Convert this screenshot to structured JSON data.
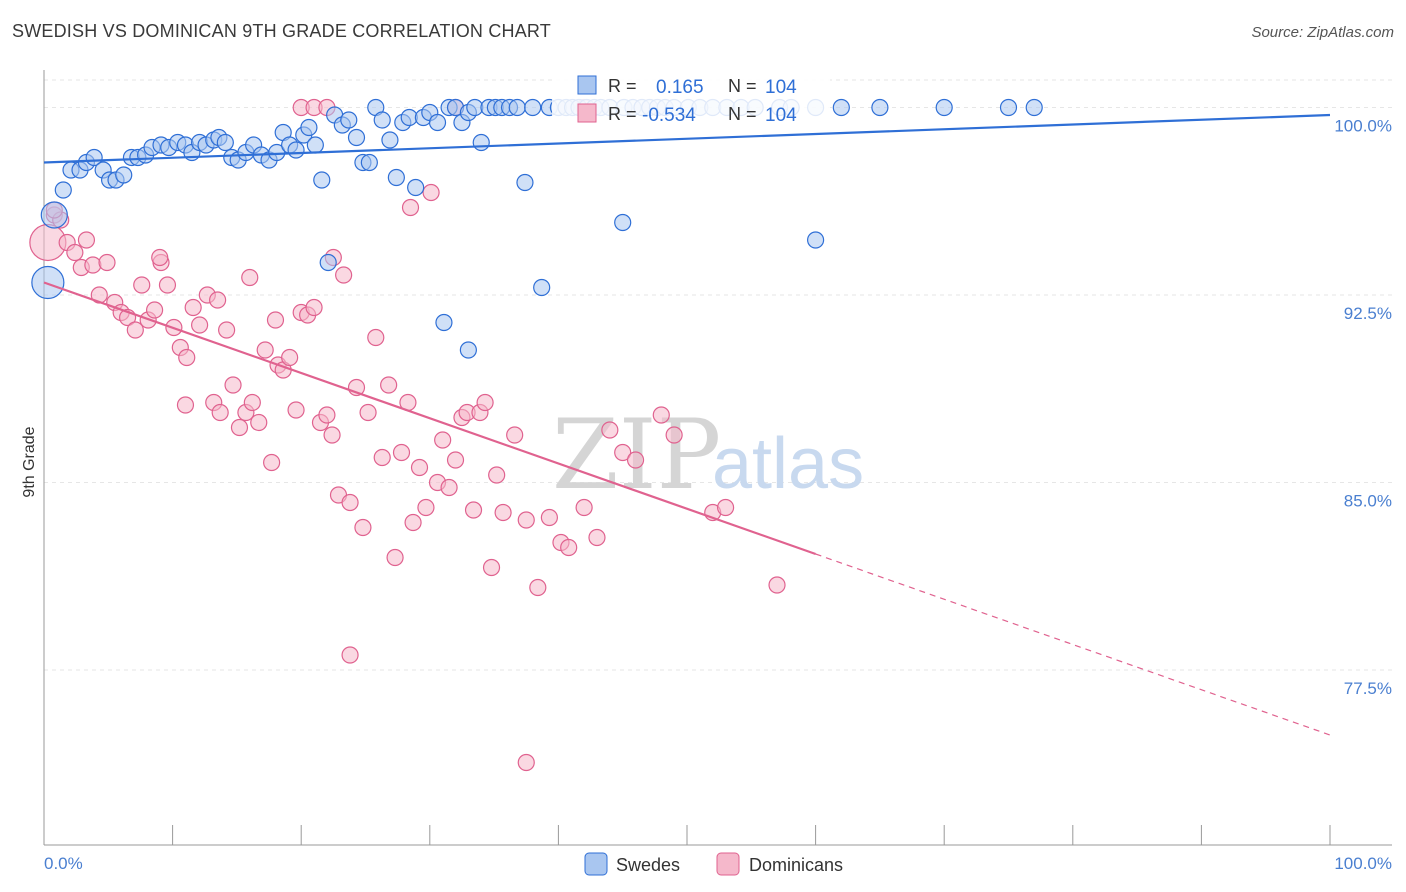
{
  "title": "SWEDISH VS DOMINICAN 9TH GRADE CORRELATION CHART",
  "source": "Source: ZipAtlas.com",
  "watermark": {
    "zip": "ZIP",
    "atlas": "atlas"
  },
  "colors": {
    "blue": "#2f6fd6",
    "blue_fill": "#a9c6f0",
    "pink": "#e0628f",
    "pink_fill": "#f5b8cb",
    "grid": "#e6e6e6",
    "tick_text": "#4a7fd0"
  },
  "legend": {
    "r_label": "R =",
    "n_label": "N =",
    "rows": [
      {
        "r": "0.165",
        "n": "104"
      },
      {
        "r": "-0.534",
        "n": "104"
      }
    ]
  },
  "chart_data": {
    "type": "scatter",
    "title": "SWEDISH VS DOMINICAN 9TH GRADE CORRELATION CHART",
    "xlabel": "",
    "ylabel": "9th Grade",
    "xlim": [
      0,
      100
    ],
    "ylim": [
      70.5,
      101.5
    ],
    "x_tick_labels": [
      "0.0%",
      "100.0%"
    ],
    "y_ticks": [
      77.5,
      85.0,
      92.5,
      100.0
    ],
    "y_tick_labels": [
      "77.5%",
      "85.0%",
      "92.5%",
      "100.0%"
    ],
    "grid": true,
    "legend_position": "bottom",
    "series": [
      {
        "name": "Swedes",
        "color": "#2f6fd6",
        "trend": {
          "x": [
            0,
            100
          ],
          "y": [
            97.8,
            99.7
          ],
          "solid_to": 100
        },
        "points": [
          [
            0.3,
            93.0
          ],
          [
            0.8,
            95.7
          ],
          [
            1.5,
            96.7
          ],
          [
            2.1,
            97.5
          ],
          [
            2.8,
            97.5
          ],
          [
            3.3,
            97.8
          ],
          [
            3.9,
            98.0
          ],
          [
            4.6,
            97.5
          ],
          [
            5.1,
            97.1
          ],
          [
            5.6,
            97.1
          ],
          [
            6.2,
            97.3
          ],
          [
            6.8,
            98.0
          ],
          [
            7.3,
            98.0
          ],
          [
            7.9,
            98.1
          ],
          [
            8.4,
            98.4
          ],
          [
            9.1,
            98.5
          ],
          [
            9.7,
            98.4
          ],
          [
            10.4,
            98.6
          ],
          [
            11.0,
            98.5
          ],
          [
            11.5,
            98.2
          ],
          [
            12.1,
            98.6
          ],
          [
            12.6,
            98.5
          ],
          [
            13.2,
            98.7
          ],
          [
            13.6,
            98.8
          ],
          [
            14.1,
            98.6
          ],
          [
            14.6,
            98.0
          ],
          [
            15.1,
            97.9
          ],
          [
            15.7,
            98.2
          ],
          [
            16.3,
            98.5
          ],
          [
            16.9,
            98.1
          ],
          [
            17.5,
            97.9
          ],
          [
            18.1,
            98.2
          ],
          [
            18.6,
            99.0
          ],
          [
            19.1,
            98.5
          ],
          [
            19.6,
            98.3
          ],
          [
            20.2,
            98.9
          ],
          [
            20.6,
            99.2
          ],
          [
            21.1,
            98.5
          ],
          [
            21.6,
            97.1
          ],
          [
            22.1,
            93.8
          ],
          [
            22.6,
            99.7
          ],
          [
            23.2,
            99.3
          ],
          [
            23.7,
            99.5
          ],
          [
            24.3,
            98.8
          ],
          [
            24.8,
            97.8
          ],
          [
            25.3,
            97.8
          ],
          [
            25.8,
            100.0
          ],
          [
            26.3,
            99.5
          ],
          [
            26.9,
            98.7
          ],
          [
            27.4,
            97.2
          ],
          [
            27.9,
            99.4
          ],
          [
            28.4,
            99.6
          ],
          [
            28.9,
            96.8
          ],
          [
            29.5,
            99.6
          ],
          [
            30.0,
            99.8
          ],
          [
            30.6,
            99.4
          ],
          [
            31.1,
            91.4
          ],
          [
            31.5,
            100.0
          ],
          [
            32.0,
            100.0
          ],
          [
            32.5,
            99.4
          ],
          [
            33.0,
            99.8
          ],
          [
            33.5,
            100.0
          ],
          [
            34.0,
            98.6
          ],
          [
            34.6,
            100.0
          ],
          [
            35.1,
            100.0
          ],
          [
            35.6,
            100.0
          ],
          [
            36.2,
            100.0
          ],
          [
            36.8,
            100.0
          ],
          [
            37.4,
            97.0
          ],
          [
            38.0,
            100.0
          ],
          [
            38.7,
            92.8
          ],
          [
            39.3,
            100.0
          ],
          [
            40.0,
            100.0
          ],
          [
            40.6,
            100.0
          ],
          [
            41.1,
            100.0
          ],
          [
            41.6,
            100.0
          ],
          [
            42.2,
            100.0
          ],
          [
            42.8,
            100.0
          ],
          [
            43.3,
            100.0
          ],
          [
            44.0,
            100.0
          ],
          [
            45.1,
            100.0
          ],
          [
            45.8,
            100.0
          ],
          [
            46.5,
            100.0
          ],
          [
            47.1,
            100.0
          ],
          [
            47.7,
            100.0
          ],
          [
            48.3,
            100.0
          ],
          [
            49.0,
            100.0
          ],
          [
            50.1,
            100.0
          ],
          [
            51.0,
            100.0
          ],
          [
            52.0,
            100.0
          ],
          [
            53.1,
            100.0
          ],
          [
            54.2,
            100.0
          ],
          [
            55.3,
            100.0
          ],
          [
            57.2,
            100.0
          ],
          [
            58.1,
            100.0
          ],
          [
            60.0,
            100.0
          ],
          [
            62.0,
            100.0
          ],
          [
            65.0,
            100.0
          ],
          [
            70.0,
            100.0
          ],
          [
            75.0,
            100.0
          ],
          [
            77.0,
            100.0
          ],
          [
            33.0,
            90.3
          ],
          [
            45.0,
            95.4
          ],
          [
            60.0,
            94.7
          ]
        ],
        "sizes_note": "two large points near x=0.3 and x=0.8"
      },
      {
        "name": "Dominicans",
        "color": "#e0628f",
        "trend": {
          "x": [
            0,
            100
          ],
          "y": [
            93.0,
            74.9
          ],
          "solid_to": 60
        },
        "points": [
          [
            0.3,
            94.6
          ],
          [
            0.8,
            95.7
          ],
          [
            1.3,
            95.5
          ],
          [
            1.8,
            94.6
          ],
          [
            2.4,
            94.2
          ],
          [
            2.9,
            93.6
          ],
          [
            3.3,
            94.7
          ],
          [
            3.8,
            93.7
          ],
          [
            4.3,
            92.5
          ],
          [
            4.9,
            93.8
          ],
          [
            5.5,
            92.2
          ],
          [
            6.0,
            91.8
          ],
          [
            6.5,
            91.6
          ],
          [
            7.1,
            91.1
          ],
          [
            7.6,
            92.9
          ],
          [
            8.1,
            91.5
          ],
          [
            8.6,
            91.9
          ],
          [
            9.1,
            93.8
          ],
          [
            9.6,
            92.9
          ],
          [
            10.1,
            91.2
          ],
          [
            10.6,
            90.4
          ],
          [
            11.1,
            90.0
          ],
          [
            11.6,
            92.0
          ],
          [
            12.1,
            91.3
          ],
          [
            12.7,
            92.5
          ],
          [
            13.2,
            88.2
          ],
          [
            13.7,
            87.8
          ],
          [
            14.2,
            91.1
          ],
          [
            14.7,
            88.9
          ],
          [
            15.2,
            87.2
          ],
          [
            15.7,
            87.8
          ],
          [
            16.2,
            88.2
          ],
          [
            16.7,
            87.4
          ],
          [
            17.2,
            90.3
          ],
          [
            17.7,
            85.8
          ],
          [
            18.2,
            89.7
          ],
          [
            18.6,
            89.5
          ],
          [
            19.1,
            90.0
          ],
          [
            19.6,
            87.9
          ],
          [
            20.0,
            91.8
          ],
          [
            20.5,
            91.7
          ],
          [
            21.0,
            92.0
          ],
          [
            21.5,
            87.4
          ],
          [
            22.0,
            87.7
          ],
          [
            22.4,
            86.9
          ],
          [
            22.9,
            84.5
          ],
          [
            23.3,
            93.3
          ],
          [
            23.8,
            84.2
          ],
          [
            24.3,
            88.8
          ],
          [
            24.8,
            83.2
          ],
          [
            25.2,
            87.8
          ],
          [
            25.8,
            90.8
          ],
          [
            26.3,
            86.0
          ],
          [
            26.8,
            88.9
          ],
          [
            27.3,
            82.0
          ],
          [
            27.8,
            86.2
          ],
          [
            28.3,
            88.2
          ],
          [
            28.7,
            83.4
          ],
          [
            29.2,
            85.6
          ],
          [
            29.7,
            84.0
          ],
          [
            30.1,
            96.6
          ],
          [
            30.6,
            85.0
          ],
          [
            31.0,
            86.7
          ],
          [
            31.5,
            84.8
          ],
          [
            32.0,
            85.9
          ],
          [
            32.5,
            87.6
          ],
          [
            32.9,
            87.8
          ],
          [
            33.4,
            83.9
          ],
          [
            33.9,
            87.8
          ],
          [
            34.3,
            88.2
          ],
          [
            34.8,
            81.6
          ],
          [
            35.2,
            85.3
          ],
          [
            35.7,
            83.8
          ],
          [
            36.6,
            86.9
          ],
          [
            37.5,
            83.5
          ],
          [
            38.4,
            80.8
          ],
          [
            39.3,
            83.6
          ],
          [
            40.2,
            82.6
          ],
          [
            40.8,
            82.4
          ],
          [
            42.0,
            84.0
          ],
          [
            43.0,
            82.8
          ],
          [
            44.0,
            87.1
          ],
          [
            45.0,
            86.2
          ],
          [
            46.0,
            85.9
          ],
          [
            48.0,
            87.7
          ],
          [
            49.0,
            86.9
          ],
          [
            52.0,
            83.8
          ],
          [
            53.0,
            84.0
          ],
          [
            57.0,
            80.9
          ],
          [
            37.5,
            73.8
          ],
          [
            23.8,
            78.1
          ],
          [
            20.0,
            100.0
          ],
          [
            21.0,
            100.0
          ],
          [
            22.0,
            100.0
          ],
          [
            32.0,
            100.0
          ],
          [
            42.0,
            100.0
          ],
          [
            28.5,
            96.0
          ],
          [
            22.5,
            94.0
          ],
          [
            11.0,
            88.1
          ],
          [
            9.0,
            94.0
          ],
          [
            13.5,
            92.3
          ],
          [
            16.0,
            93.2
          ],
          [
            18.0,
            91.5
          ],
          [
            0.8,
            95.9
          ]
        ],
        "sizes_note": "one large point near x=0.3"
      }
    ]
  },
  "bottom_legend": [
    {
      "label": "Swedes"
    },
    {
      "label": "Dominicans"
    }
  ]
}
